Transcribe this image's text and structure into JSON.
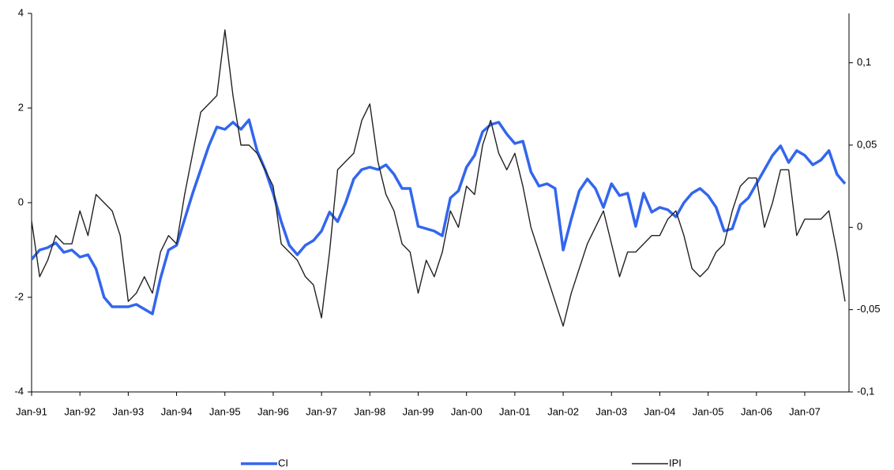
{
  "chart_data": {
    "type": "line",
    "categories": [
      "Jan-91",
      null,
      null,
      null,
      null,
      null,
      "Jan-92",
      null,
      null,
      null,
      null,
      null,
      "Jan-93",
      null,
      null,
      null,
      null,
      null,
      "Jan-94",
      null,
      null,
      null,
      null,
      null,
      "Jan-95",
      null,
      null,
      null,
      null,
      null,
      "Jan-96",
      null,
      null,
      null,
      null,
      null,
      "Jan-97",
      null,
      null,
      null,
      null,
      null,
      "Jan-98",
      null,
      null,
      null,
      null,
      null,
      "Jan-99",
      null,
      null,
      null,
      null,
      null,
      "Jan-00",
      null,
      null,
      null,
      null,
      null,
      "Jan-01",
      null,
      null,
      null,
      null,
      null,
      "Jan-02",
      null,
      null,
      null,
      null,
      null,
      "Jan-03",
      null,
      null,
      null,
      null,
      null,
      "Jan-04",
      null,
      null,
      null,
      null,
      null,
      "Jan-05",
      null,
      null,
      null,
      null,
      null,
      "Jan-06",
      null,
      null,
      null,
      null,
      null,
      "Jan-07",
      null,
      null,
      null,
      null,
      null
    ],
    "series": [
      {
        "name": "CI",
        "color": "#3366ee",
        "axis": "y",
        "values": [
          -1.2,
          -1.0,
          -0.95,
          -0.85,
          -1.05,
          -1.0,
          -1.15,
          -1.1,
          -1.4,
          -2.0,
          -2.2,
          -2.2,
          -2.2,
          -2.15,
          -2.25,
          -2.35,
          -1.6,
          -1.0,
          -0.9,
          -0.35,
          0.2,
          0.7,
          1.2,
          1.6,
          1.55,
          1.7,
          1.55,
          1.75,
          1.1,
          0.7,
          0.2,
          -0.4,
          -0.9,
          -1.1,
          -0.9,
          -0.8,
          -0.6,
          -0.2,
          -0.4,
          0.0,
          0.5,
          0.7,
          0.75,
          0.7,
          0.8,
          0.6,
          0.3,
          0.3,
          -0.5,
          -0.55,
          -0.6,
          -0.7,
          0.1,
          0.25,
          0.75,
          1.0,
          1.5,
          1.65,
          1.7,
          1.45,
          1.25,
          1.3,
          0.65,
          0.35,
          0.4,
          0.3,
          -1.0,
          -0.35,
          0.25,
          0.5,
          0.3,
          -0.1,
          0.4,
          0.15,
          0.2,
          -0.5,
          0.2,
          -0.2,
          -0.1,
          -0.15,
          -0.3,
          0.0,
          0.2,
          0.3,
          0.15,
          -0.1,
          -0.6,
          -0.55,
          -0.05,
          0.1,
          0.4,
          0.7,
          1.0,
          1.2,
          0.85,
          1.1,
          1.0,
          0.8,
          0.9,
          1.1,
          0.6,
          0.4
        ]
      },
      {
        "name": "IPI",
        "color": "#222222",
        "axis": "y2",
        "values": [
          0.004,
          -0.03,
          -0.02,
          -0.005,
          -0.01,
          -0.01,
          0.01,
          -0.005,
          0.02,
          0.015,
          0.01,
          -0.005,
          -0.045,
          -0.04,
          -0.03,
          -0.04,
          -0.015,
          -0.005,
          -0.01,
          0.02,
          0.045,
          0.07,
          0.075,
          0.08,
          0.12,
          0.08,
          0.05,
          0.05,
          0.045,
          0.035,
          0.025,
          -0.01,
          -0.015,
          -0.02,
          -0.03,
          -0.035,
          -0.055,
          -0.015,
          0.035,
          0.04,
          0.045,
          0.065,
          0.075,
          0.04,
          0.02,
          0.01,
          -0.01,
          -0.015,
          -0.04,
          -0.02,
          -0.03,
          -0.015,
          0.01,
          0.0,
          0.025,
          0.02,
          0.05,
          0.065,
          0.045,
          0.035,
          0.045,
          0.025,
          0.0,
          -0.015,
          -0.03,
          -0.045,
          -0.06,
          -0.04,
          -0.025,
          -0.01,
          0.0,
          0.01,
          -0.01,
          -0.03,
          -0.015,
          -0.015,
          -0.01,
          -0.005,
          -0.005,
          0.005,
          0.01,
          -0.005,
          -0.025,
          -0.03,
          -0.025,
          -0.015,
          -0.01,
          0.01,
          0.025,
          0.03,
          0.03,
          0.0,
          0.015,
          0.035,
          0.035,
          -0.005,
          0.005,
          0.005,
          0.005,
          0.01,
          -0.015,
          -0.045
        ]
      }
    ],
    "ylim": [
      -4,
      4
    ],
    "yticks": [
      -4,
      -2,
      0,
      2,
      4
    ],
    "y2lim": [
      -0.1,
      0.13
    ],
    "y2ticks": [
      {
        "value": -0.1,
        "label": "-0,1"
      },
      {
        "value": -0.05,
        "label": "-0,05"
      },
      {
        "value": 0,
        "label": "0"
      },
      {
        "value": 0.05,
        "label": "0,05"
      },
      {
        "value": 0.1,
        "label": "0,1"
      }
    ]
  }
}
